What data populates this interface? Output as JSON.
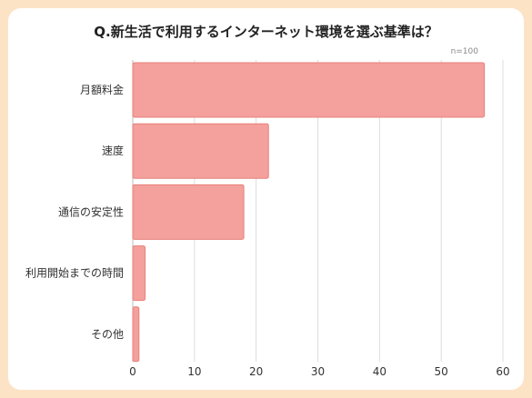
{
  "chart_data": {
    "type": "bar",
    "orientation": "horizontal",
    "title": "Q.新生活で利用するインターネット環境を選ぶ基準は？",
    "note": "n=100",
    "categories": [
      "月額料金",
      "速度",
      "通信の安定性",
      "利用開始までの時間",
      "その他"
    ],
    "values": [
      57,
      22,
      18,
      2,
      1
    ],
    "xlim": [
      0,
      60
    ],
    "xticks": [
      0,
      10,
      20,
      30,
      40,
      50,
      60
    ],
    "grid": true,
    "bar_color": "#f4a09c",
    "bar_border_color": "#e8807b"
  }
}
